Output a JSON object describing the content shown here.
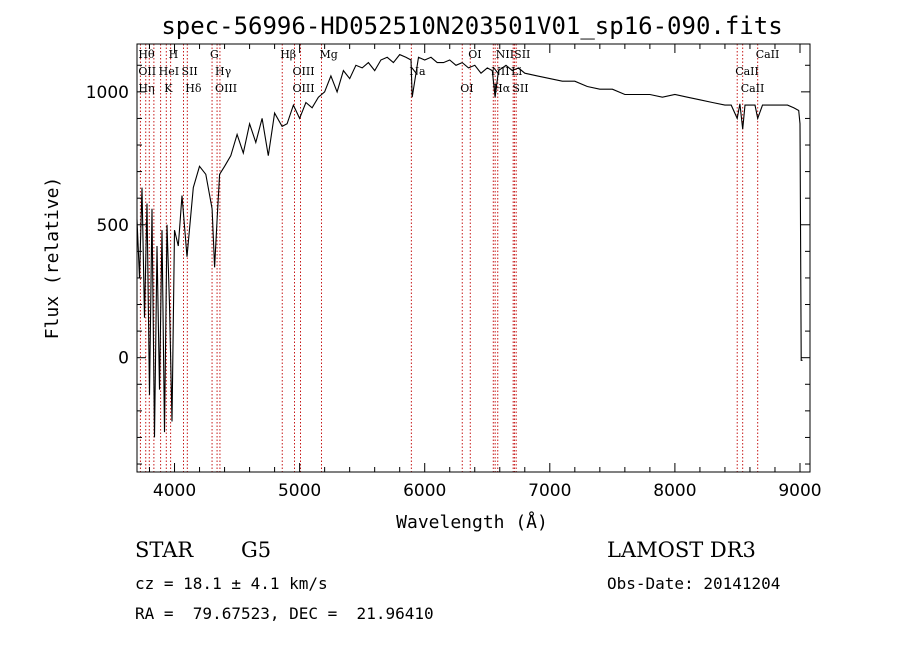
{
  "chart_data": {
    "type": "line",
    "title": "spec-56996-HD052510N203501V01_sp16-090.fits",
    "xlabel": "Wavelength (Å)",
    "ylabel": "Flux (relative)",
    "xlim": [
      3700,
      9080
    ],
    "ylim": [
      -430,
      1180
    ],
    "x_ticks": [
      4000,
      5000,
      6000,
      7000,
      8000,
      9000
    ],
    "y_ticks": [
      0,
      500,
      1000
    ],
    "series": [
      {
        "name": "flux",
        "x": [
          3700,
          3720,
          3740,
          3760,
          3780,
          3800,
          3820,
          3840,
          3860,
          3880,
          3900,
          3920,
          3940,
          3960,
          3980,
          4000,
          4030,
          4060,
          4100,
          4150,
          4200,
          4250,
          4300,
          4320,
          4340,
          4360,
          4400,
          4450,
          4500,
          4550,
          4600,
          4650,
          4700,
          4750,
          4800,
          4860,
          4900,
          4950,
          5000,
          5050,
          5100,
          5150,
          5200,
          5250,
          5300,
          5350,
          5400,
          5450,
          5500,
          5550,
          5600,
          5650,
          5700,
          5750,
          5800,
          5850,
          5890,
          5900,
          5950,
          6000,
          6050,
          6100,
          6150,
          6200,
          6250,
          6300,
          6350,
          6400,
          6450,
          6500,
          6540,
          6563,
          6590,
          6650,
          6700,
          6750,
          6800,
          6900,
          7000,
          7100,
          7200,
          7300,
          7400,
          7500,
          7600,
          7700,
          7800,
          7900,
          8000,
          8100,
          8200,
          8300,
          8400,
          8450,
          8498,
          8520,
          8542,
          8560,
          8600,
          8640,
          8662,
          8700,
          8750,
          8800,
          8850,
          8900,
          8950,
          8990,
          9000,
          9010,
          9020
        ],
        "y": [
          520,
          300,
          640,
          150,
          580,
          -140,
          560,
          -300,
          420,
          -120,
          480,
          -280,
          500,
          200,
          -240,
          480,
          420,
          610,
          380,
          640,
          720,
          690,
          560,
          340,
          520,
          690,
          720,
          760,
          840,
          770,
          880,
          810,
          900,
          760,
          920,
          870,
          880,
          950,
          900,
          960,
          940,
          980,
          1000,
          1060,
          1000,
          1080,
          1050,
          1100,
          1090,
          1110,
          1080,
          1120,
          1130,
          1110,
          1140,
          1130,
          1120,
          980,
          1130,
          1120,
          1130,
          1110,
          1110,
          1120,
          1100,
          1110,
          1090,
          1100,
          1070,
          1090,
          1080,
          980,
          1080,
          1100,
          1080,
          1090,
          1070,
          1060,
          1050,
          1040,
          1040,
          1020,
          1010,
          1010,
          990,
          990,
          990,
          980,
          990,
          980,
          970,
          960,
          950,
          950,
          900,
          955,
          860,
          950,
          950,
          950,
          900,
          950,
          950,
          950,
          950,
          950,
          940,
          930,
          880,
          -10,
          -10
        ]
      }
    ],
    "line_markers": [
      {
        "w": 3727,
        "labels": [
          "Hθ",
          "OII",
          "Hη"
        ]
      },
      {
        "w": 3770,
        "labels": []
      },
      {
        "w": 3798,
        "labels": []
      },
      {
        "w": 3835,
        "labels": []
      },
      {
        "w": 3889,
        "labels": [
          "HeI"
        ]
      },
      {
        "w": 3934,
        "labels": [
          "K"
        ]
      },
      {
        "w": 3969,
        "labels": [
          "H"
        ]
      },
      {
        "w": 4072,
        "labels": [
          "SII"
        ]
      },
      {
        "w": 4102,
        "labels": [
          "Hδ"
        ]
      },
      {
        "w": 4300,
        "labels": [
          "G"
        ]
      },
      {
        "w": 4340,
        "labels": [
          "Hγ",
          "OIII"
        ]
      },
      {
        "w": 4363,
        "labels": []
      },
      {
        "w": 4861,
        "labels": [
          "Hβ"
        ]
      },
      {
        "w": 4959,
        "labels": [
          "OIII",
          "OIII"
        ]
      },
      {
        "w": 5007,
        "labels": []
      },
      {
        "w": 5175,
        "labels": [
          "Mg"
        ]
      },
      {
        "w": 5893,
        "labels": [
          "Na"
        ]
      },
      {
        "w": 6300,
        "labels": [
          "OI"
        ]
      },
      {
        "w": 6364,
        "labels": [
          "OI"
        ]
      },
      {
        "w": 6548,
        "labels": [
          "NII"
        ]
      },
      {
        "w": 6563,
        "labels": [
          "Hα"
        ]
      },
      {
        "w": 6584,
        "labels": [
          "NII"
        ]
      },
      {
        "w": 6707,
        "labels": [
          "Li"
        ]
      },
      {
        "w": 6717,
        "labels": [
          "SII"
        ]
      },
      {
        "w": 6731,
        "labels": [
          "SII"
        ]
      },
      {
        "w": 8498,
        "labels": [
          "CaII"
        ]
      },
      {
        "w": 8542,
        "labels": [
          "CaII"
        ]
      },
      {
        "w": 8662,
        "labels": [
          "CaII"
        ]
      }
    ],
    "grid": false,
    "legend": "none"
  },
  "info": {
    "class_label": "STAR",
    "subclass_label": "G5",
    "survey": "LAMOST DR3",
    "cz": "cz = 18.1 ± 4.1 km/s",
    "obs_date": "Obs-Date: 20141204",
    "coords": "RA =  79.67523, DEC =  21.96410"
  }
}
